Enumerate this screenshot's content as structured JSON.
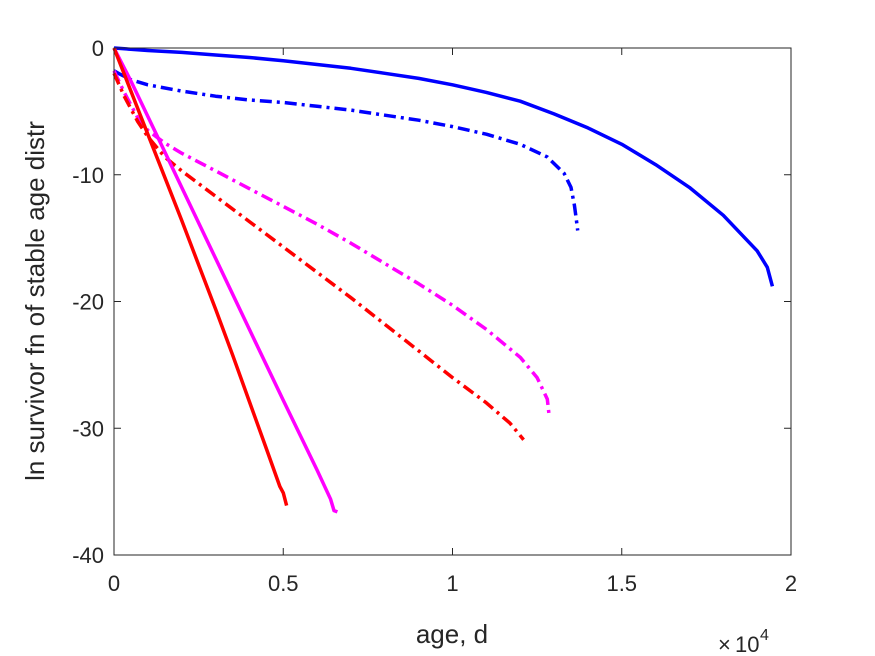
{
  "chart_data": {
    "type": "line",
    "title": "",
    "xlabel": "age, d",
    "ylabel": "ln survivor fn of stable age distr",
    "x_multiplier_base": "10",
    "x_multiplier_exponent": "4",
    "xlim": [
      0,
      20000
    ],
    "ylim": [
      -40,
      0
    ],
    "x_ticks": [
      0,
      5000,
      10000,
      15000,
      20000
    ],
    "x_tick_labels": [
      "0",
      "0.5",
      "1",
      "1.5",
      "2"
    ],
    "y_ticks": [
      -40,
      -30,
      -20,
      -10,
      0
    ],
    "y_tick_labels": [
      "-40",
      "-30",
      "-20",
      "-10",
      "0"
    ],
    "grid": false,
    "series": [
      {
        "color": "#0000ff",
        "style": "solid",
        "points": [
          [
            0,
            0
          ],
          [
            1000,
            -0.2
          ],
          [
            2000,
            -0.35
          ],
          [
            3000,
            -0.55
          ],
          [
            4000,
            -0.75
          ],
          [
            5000,
            -1.0
          ],
          [
            6000,
            -1.3
          ],
          [
            7000,
            -1.6
          ],
          [
            8000,
            -2.0
          ],
          [
            9000,
            -2.4
          ],
          [
            10000,
            -2.9
          ],
          [
            11000,
            -3.5
          ],
          [
            12000,
            -4.2
          ],
          [
            13000,
            -5.2
          ],
          [
            14000,
            -6.3
          ],
          [
            15000,
            -7.6
          ],
          [
            16000,
            -9.2
          ],
          [
            17000,
            -11.0
          ],
          [
            18000,
            -13.2
          ],
          [
            19000,
            -16.0
          ],
          [
            19300,
            -17.3
          ],
          [
            19450,
            -18.8
          ]
        ]
      },
      {
        "color": "#0000ff",
        "style": "dashdot",
        "points": [
          [
            0,
            -1.8
          ],
          [
            200,
            -2.1
          ],
          [
            500,
            -2.5
          ],
          [
            1000,
            -2.9
          ],
          [
            2000,
            -3.4
          ],
          [
            3000,
            -3.8
          ],
          [
            4000,
            -4.1
          ],
          [
            5000,
            -4.3
          ],
          [
            6000,
            -4.6
          ],
          [
            7000,
            -4.9
          ],
          [
            8000,
            -5.3
          ],
          [
            9000,
            -5.7
          ],
          [
            10000,
            -6.2
          ],
          [
            11000,
            -6.8
          ],
          [
            12000,
            -7.6
          ],
          [
            12800,
            -8.6
          ],
          [
            13300,
            -9.9
          ],
          [
            13500,
            -11.0
          ],
          [
            13600,
            -12.4
          ],
          [
            13650,
            -13.4
          ],
          [
            13700,
            -14.4
          ]
        ]
      },
      {
        "color": "#ff00ff",
        "style": "dashdot",
        "points": [
          [
            0,
            -1.8
          ],
          [
            300,
            -3.5
          ],
          [
            700,
            -5.5
          ],
          [
            1000,
            -6.5
          ],
          [
            1500,
            -7.5
          ],
          [
            2000,
            -8.3
          ],
          [
            3000,
            -9.7
          ],
          [
            4000,
            -11.1
          ],
          [
            5000,
            -12.5
          ],
          [
            6000,
            -13.9
          ],
          [
            7000,
            -15.4
          ],
          [
            8000,
            -17.0
          ],
          [
            9000,
            -18.6
          ],
          [
            10000,
            -20.3
          ],
          [
            11000,
            -22.2
          ],
          [
            12000,
            -24.4
          ],
          [
            12500,
            -26.0
          ],
          [
            12800,
            -27.7
          ],
          [
            12850,
            -28.9
          ]
        ]
      },
      {
        "color": "#ff0000",
        "style": "dashdot",
        "points": [
          [
            0,
            -2.0
          ],
          [
            300,
            -3.8
          ],
          [
            700,
            -5.8
          ],
          [
            1000,
            -7.0
          ],
          [
            1500,
            -8.6
          ],
          [
            2000,
            -9.7
          ],
          [
            3000,
            -11.7
          ],
          [
            4000,
            -13.7
          ],
          [
            5000,
            -15.7
          ],
          [
            6000,
            -17.7
          ],
          [
            7000,
            -19.7
          ],
          [
            8000,
            -21.8
          ],
          [
            9000,
            -23.9
          ],
          [
            10000,
            -26.0
          ],
          [
            11000,
            -28.0
          ],
          [
            11700,
            -29.6
          ],
          [
            12100,
            -30.9
          ]
        ]
      },
      {
        "color": "#ff00ff",
        "style": "solid",
        "points": [
          [
            0,
            0
          ],
          [
            500,
            -2.6
          ],
          [
            1000,
            -5.4
          ],
          [
            1500,
            -8.2
          ],
          [
            2000,
            -11.0
          ],
          [
            3000,
            -16.6
          ],
          [
            4000,
            -22.2
          ],
          [
            5000,
            -27.8
          ],
          [
            6000,
            -33.3
          ],
          [
            6400,
            -35.6
          ],
          [
            6500,
            -36.5
          ],
          [
            6600,
            -36.6
          ]
        ]
      },
      {
        "color": "#ff0000",
        "style": "solid",
        "points": [
          [
            0,
            0
          ],
          [
            500,
            -3.4
          ],
          [
            1000,
            -6.8
          ],
          [
            1500,
            -10.2
          ],
          [
            2000,
            -13.6
          ],
          [
            2500,
            -17.1
          ],
          [
            3000,
            -20.6
          ],
          [
            3500,
            -24.2
          ],
          [
            4000,
            -27.9
          ],
          [
            4500,
            -31.6
          ],
          [
            4900,
            -34.6
          ],
          [
            5000,
            -35.1
          ],
          [
            5100,
            -36.1
          ]
        ]
      }
    ]
  }
}
